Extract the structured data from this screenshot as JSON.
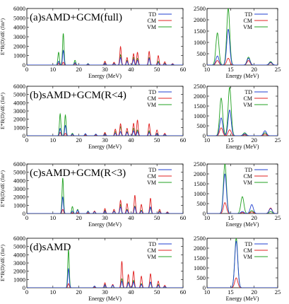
{
  "figure": {
    "xlabel": "Energy (MeV)",
    "ylabel": "E*B(D)/dE (fm⁶)",
    "legend_labels": [
      "TD",
      "CM",
      "VM"
    ],
    "legend_placement": "top-right"
  },
  "chart_data": [
    {
      "type": "line",
      "panel": "a-full",
      "title": "(a)sAMD+GCM(full)",
      "xlim": [
        0,
        60
      ],
      "ylim": [
        0,
        6000
      ],
      "xticks": [
        0,
        10,
        20,
        30,
        40,
        50,
        60
      ],
      "yticks": [
        0,
        1000,
        2000,
        3000,
        4000,
        5000,
        6000
      ],
      "xlabel": "Energy (MeV)",
      "ylabel": "E*B(D)/dE (fm⁶)",
      "series": [
        {
          "name": "TD",
          "color": "#1f3fd0",
          "peaks": [
            [
              12.2,
              400
            ],
            [
              14.0,
              1550
            ],
            [
              18.5,
              250
            ],
            [
              23.5,
              120
            ],
            [
              30.0,
              200
            ],
            [
              33.5,
              150
            ],
            [
              36.0,
              800
            ],
            [
              38.5,
              400
            ],
            [
              41.0,
              600
            ],
            [
              42.5,
              500
            ],
            [
              47.0,
              700
            ],
            [
              50.5,
              250
            ],
            [
              53.0,
              150
            ],
            [
              56.0,
              100
            ]
          ]
        },
        {
          "name": "CM",
          "color": "#e02020",
          "peaks": [
            [
              12.2,
              200
            ],
            [
              14.0,
              300
            ],
            [
              18.5,
              150
            ],
            [
              23.5,
              100
            ],
            [
              30.0,
              400
            ],
            [
              33.5,
              300
            ],
            [
              36.0,
              1950
            ],
            [
              38.5,
              800
            ],
            [
              41.0,
              1200
            ],
            [
              42.5,
              1350
            ],
            [
              47.0,
              1450
            ],
            [
              50.5,
              1000
            ],
            [
              53.0,
              350
            ],
            [
              56.0,
              150
            ]
          ]
        },
        {
          "name": "VM",
          "color": "#20a020",
          "peaks": [
            [
              12.2,
              1350
            ],
            [
              14.0,
              3350
            ],
            [
              18.5,
              500
            ],
            [
              23.5,
              150
            ],
            [
              30.0,
              350
            ],
            [
              33.5,
              200
            ],
            [
              36.0,
              1100
            ],
            [
              38.5,
              500
            ],
            [
              41.0,
              800
            ],
            [
              42.5,
              700
            ],
            [
              47.0,
              800
            ],
            [
              50.5,
              400
            ],
            [
              53.0,
              200
            ],
            [
              56.0,
              100
            ]
          ]
        }
      ]
    },
    {
      "type": "line",
      "panel": "a-full-zoom",
      "title": "",
      "xlim": [
        10,
        25
      ],
      "ylim": [
        0,
        2500
      ],
      "xticks": [
        10,
        15,
        20,
        25
      ],
      "yticks": [
        0,
        500,
        1000,
        1500,
        2000,
        2500
      ],
      "xlabel": "Energy (MeV)",
      "ylabel": "",
      "series": [
        {
          "name": "TD",
          "color": "#1f3fd0",
          "peaks": [
            [
              12.2,
              400
            ],
            [
              14.5,
              1580
            ],
            [
              18.8,
              300
            ],
            [
              23.5,
              120
            ]
          ]
        },
        {
          "name": "CM",
          "color": "#e02020",
          "peaks": [
            [
              12.2,
              200
            ],
            [
              14.5,
              300
            ],
            [
              18.8,
              200
            ],
            [
              23.5,
              100
            ]
          ]
        },
        {
          "name": "VM",
          "color": "#20a020",
          "peaks": [
            [
              12.2,
              1420
            ],
            [
              14.5,
              2500
            ],
            [
              18.8,
              350
            ],
            [
              23.5,
              150
            ]
          ]
        }
      ]
    },
    {
      "type": "line",
      "panel": "b-R4",
      "title": "(b)sAMD+GCM(R<4)",
      "xlim": [
        0,
        60
      ],
      "ylim": [
        0,
        6000
      ],
      "xticks": [
        0,
        10,
        20,
        30,
        40,
        50,
        60
      ],
      "yticks": [
        0,
        1000,
        2000,
        3000,
        4000,
        5000,
        6000
      ],
      "xlabel": "Energy (MeV)",
      "ylabel": "E*B(D)/dE (fm⁶)",
      "series": [
        {
          "name": "TD",
          "color": "#1f3fd0",
          "peaks": [
            [
              12.8,
              900
            ],
            [
              14.8,
              1250
            ],
            [
              17.5,
              200
            ],
            [
              22.5,
              250
            ],
            [
              26.5,
              200
            ],
            [
              30.0,
              200
            ],
            [
              34.0,
              300
            ],
            [
              36.0,
              500
            ],
            [
              38.5,
              400
            ],
            [
              41.0,
              600
            ],
            [
              42.5,
              500
            ],
            [
              47.0,
              400
            ],
            [
              50.0,
              250
            ],
            [
              53.0,
              150
            ]
          ]
        },
        {
          "name": "CM",
          "color": "#e02020",
          "peaks": [
            [
              12.8,
              400
            ],
            [
              14.8,
              300
            ],
            [
              17.5,
              150
            ],
            [
              22.5,
              100
            ],
            [
              26.5,
              100
            ],
            [
              30.0,
              400
            ],
            [
              34.0,
              800
            ],
            [
              36.0,
              1450
            ],
            [
              38.5,
              900
            ],
            [
              41.0,
              1500
            ],
            [
              42.5,
              1900
            ],
            [
              47.0,
              1450
            ],
            [
              50.0,
              700
            ],
            [
              53.0,
              300
            ]
          ]
        },
        {
          "name": "VM",
          "color": "#20a020",
          "peaks": [
            [
              12.8,
              2650
            ],
            [
              14.8,
              2500
            ],
            [
              17.5,
              300
            ],
            [
              22.5,
              200
            ],
            [
              26.5,
              200
            ],
            [
              30.0,
              300
            ],
            [
              34.0,
              500
            ],
            [
              36.0,
              1100
            ],
            [
              38.5,
              500
            ],
            [
              41.0,
              900
            ],
            [
              42.5,
              700
            ],
            [
              47.0,
              600
            ],
            [
              50.0,
              300
            ],
            [
              53.0,
              150
            ]
          ]
        }
      ]
    },
    {
      "type": "line",
      "panel": "b-R4-zoom",
      "title": "",
      "xlim": [
        10,
        25
      ],
      "ylim": [
        0,
        2500
      ],
      "xticks": [
        10,
        15,
        20,
        25
      ],
      "yticks": [
        0,
        500,
        1000,
        1500,
        2000,
        2500
      ],
      "xlabel": "Energy (MeV)",
      "ylabel": "",
      "series": [
        {
          "name": "TD",
          "color": "#1f3fd0",
          "peaks": [
            [
              13.0,
              900
            ],
            [
              14.8,
              1300
            ],
            [
              18.0,
              100
            ],
            [
              22.3,
              250
            ]
          ]
        },
        {
          "name": "CM",
          "color": "#e02020",
          "peaks": [
            [
              13.0,
              400
            ],
            [
              14.8,
              300
            ],
            [
              18.0,
              50
            ],
            [
              22.3,
              80
            ]
          ]
        },
        {
          "name": "VM",
          "color": "#20a020",
          "peaks": [
            [
              13.0,
              1900
            ],
            [
              14.8,
              2450
            ],
            [
              18.0,
              150
            ],
            [
              22.3,
              150
            ]
          ]
        }
      ]
    },
    {
      "type": "line",
      "panel": "c-R3",
      "title": "(c)sAMD+GCM(R<3)",
      "xlim": [
        0,
        60
      ],
      "ylim": [
        0,
        6000
      ],
      "xticks": [
        0,
        10,
        20,
        30,
        40,
        50,
        60
      ],
      "yticks": [
        0,
        1000,
        2000,
        3000,
        4000,
        5000,
        6000
      ],
      "xlabel": "Energy (MeV)",
      "ylabel": "E*B(D)/dE (fm⁶)",
      "series": [
        {
          "name": "TD",
          "color": "#1f3fd0",
          "peaks": [
            [
              13.8,
              2000
            ],
            [
              17.5,
              300
            ],
            [
              19.5,
              400
            ],
            [
              23.5,
              250
            ],
            [
              26.0,
              200
            ],
            [
              30.0,
              300
            ],
            [
              33.5,
              250
            ],
            [
              36.0,
              800
            ],
            [
              38.5,
              400
            ],
            [
              41.5,
              800
            ],
            [
              44.0,
              300
            ],
            [
              47.5,
              800
            ],
            [
              51.0,
              200
            ],
            [
              54.0,
              100
            ]
          ]
        },
        {
          "name": "CM",
          "color": "#e02020",
          "peaks": [
            [
              13.8,
              500
            ],
            [
              17.5,
              100
            ],
            [
              19.5,
              100
            ],
            [
              23.5,
              100
            ],
            [
              26.0,
              300
            ],
            [
              30.0,
              600
            ],
            [
              33.5,
              500
            ],
            [
              36.0,
              1600
            ],
            [
              38.5,
              1200
            ],
            [
              41.5,
              2200
            ],
            [
              44.0,
              1100
            ],
            [
              47.5,
              1850
            ],
            [
              51.0,
              500
            ],
            [
              54.0,
              200
            ]
          ]
        },
        {
          "name": "VM",
          "color": "#20a020",
          "peaks": [
            [
              13.8,
              4300
            ],
            [
              17.5,
              850
            ],
            [
              19.5,
              500
            ],
            [
              23.5,
              300
            ],
            [
              26.0,
              250
            ],
            [
              30.0,
              400
            ],
            [
              33.5,
              300
            ],
            [
              36.0,
              1100
            ],
            [
              38.5,
              500
            ],
            [
              41.5,
              900
            ],
            [
              44.0,
              400
            ],
            [
              47.5,
              700
            ],
            [
              51.0,
              300
            ],
            [
              54.0,
              150
            ]
          ]
        }
      ]
    },
    {
      "type": "line",
      "panel": "c-R3-zoom",
      "title": "",
      "xlim": [
        10,
        25
      ],
      "ylim": [
        0,
        2500
      ],
      "xticks": [
        10,
        15,
        20,
        25
      ],
      "yticks": [
        0,
        500,
        1000,
        1500,
        2000,
        2500
      ],
      "xlabel": "Energy (MeV)",
      "ylabel": "",
      "series": [
        {
          "name": "TD",
          "color": "#1f3fd0",
          "peaks": [
            [
              13.8,
              2000
            ],
            [
              17.5,
              100
            ],
            [
              19.5,
              450
            ],
            [
              23.5,
              250
            ]
          ]
        },
        {
          "name": "CM",
          "color": "#e02020",
          "peaks": [
            [
              13.8,
              550
            ],
            [
              17.5,
              50
            ],
            [
              19.5,
              80
            ],
            [
              23.5,
              280
            ]
          ]
        },
        {
          "name": "VM",
          "color": "#20a020",
          "peaks": [
            [
              13.8,
              2500
            ],
            [
              17.5,
              850
            ],
            [
              19.5,
              150
            ],
            [
              23.5,
              100
            ]
          ]
        }
      ]
    },
    {
      "type": "line",
      "panel": "d-sAMD",
      "title": "(d)sAMD",
      "xlim": [
        0,
        60
      ],
      "ylim": [
        0,
        6000
      ],
      "xticks": [
        0,
        10,
        20,
        30,
        40,
        50,
        60
      ],
      "yticks": [
        0,
        1000,
        2000,
        3000,
        4000,
        5000,
        6000
      ],
      "xlabel": "Energy (MeV)",
      "ylabel": "E*B(D)/dE (fm⁶)",
      "series": [
        {
          "name": "TD",
          "color": "#1f3fd0",
          "peaks": [
            [
              16.0,
              2300
            ],
            [
              26.0,
              200
            ],
            [
              30.0,
              350
            ],
            [
              33.0,
              300
            ],
            [
              36.5,
              800
            ],
            [
              39.0,
              600
            ],
            [
              41.0,
              700
            ],
            [
              44.0,
              400
            ],
            [
              47.5,
              700
            ],
            [
              50.5,
              300
            ],
            [
              53.0,
              150
            ]
          ]
        },
        {
          "name": "CM",
          "color": "#e02020",
          "peaks": [
            [
              16.0,
              500
            ],
            [
              26.0,
              100
            ],
            [
              30.0,
              600
            ],
            [
              33.0,
              400
            ],
            [
              36.5,
              3200
            ],
            [
              39.0,
              1600
            ],
            [
              41.0,
              2000
            ],
            [
              44.0,
              1400
            ],
            [
              47.5,
              1700
            ],
            [
              50.5,
              800
            ],
            [
              53.0,
              300
            ]
          ]
        },
        {
          "name": "VM",
          "color": "#20a020",
          "peaks": [
            [
              16.0,
              4600
            ],
            [
              26.0,
              200
            ],
            [
              30.0,
              400
            ],
            [
              33.0,
              300
            ],
            [
              36.5,
              1100
            ],
            [
              39.0,
              700
            ],
            [
              41.0,
              900
            ],
            [
              44.0,
              500
            ],
            [
              47.5,
              700
            ],
            [
              50.5,
              400
            ],
            [
              53.0,
              150
            ]
          ]
        }
      ]
    },
    {
      "type": "line",
      "panel": "d-sAMD-zoom",
      "title": "",
      "xlim": [
        10,
        25
      ],
      "ylim": [
        0,
        2500
      ],
      "xticks": [
        10,
        15,
        20,
        25
      ],
      "yticks": [
        0,
        500,
        1000,
        1500,
        2000,
        2500
      ],
      "xlabel": "Energy (MeV)",
      "ylabel": "",
      "series": [
        {
          "name": "TD",
          "color": "#1f3fd0",
          "peaks": [
            [
              16.2,
              2350
            ]
          ]
        },
        {
          "name": "CM",
          "color": "#e02020",
          "peaks": [
            [
              16.2,
              500
            ]
          ]
        },
        {
          "name": "VM",
          "color": "#20a020",
          "peaks": [
            [
              16.2,
              2500
            ]
          ]
        }
      ]
    }
  ]
}
